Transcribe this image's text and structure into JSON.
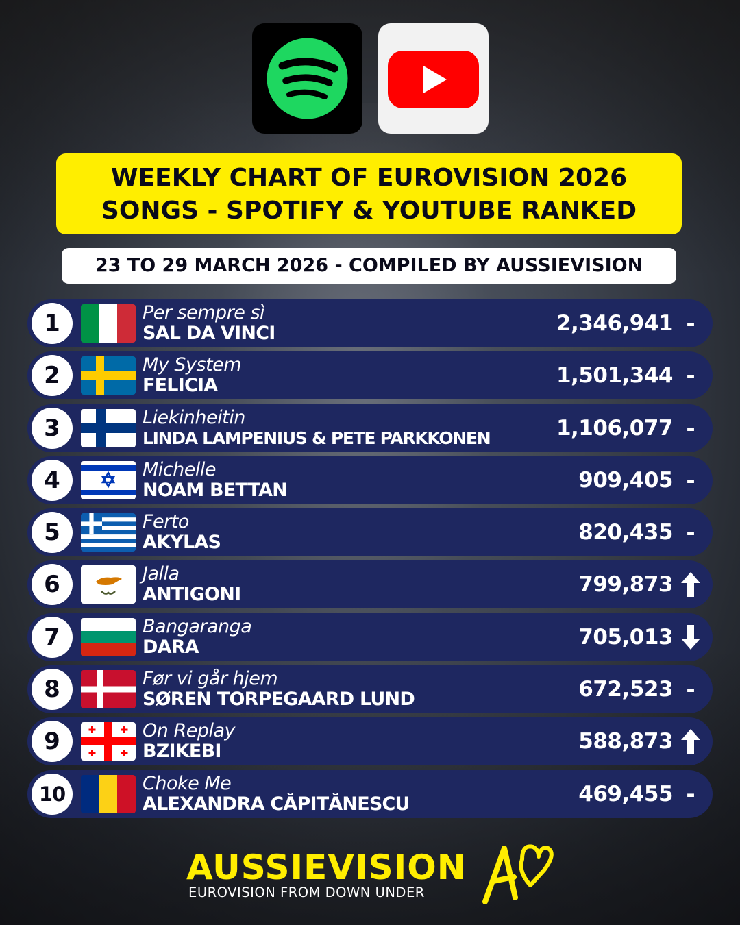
{
  "header": {
    "title_line1": "WEEKLY CHART OF EUROVISION 2026",
    "title_line2": "SONGS - SPOTIFY & YOUTUBE RANKED",
    "subtitle": "23 TO 29 MARCH 2026 - COMPILED BY AUSSIEVISION",
    "icons": [
      "spotify-icon",
      "youtube-icon"
    ],
    "colors": {
      "title_bg": "#ffee00",
      "row_bg": "#1e2760",
      "spotify_green": "#1ed760",
      "youtube_red": "#ff0000"
    }
  },
  "chart": {
    "rows": [
      {
        "rank": "1",
        "flag": "italy-flag",
        "song": "Per sempre sì",
        "artist": "SAL DA VINCI",
        "streams": "2,346,941",
        "movement": "-"
      },
      {
        "rank": "2",
        "flag": "sweden-flag",
        "song": "My System",
        "artist": "FELICIA",
        "streams": "1,501,344",
        "movement": "-"
      },
      {
        "rank": "3",
        "flag": "finland-flag",
        "song": "Liekinheitin",
        "artist": "LINDA LAMPENIUS & PETE PARKKONEN",
        "streams": "1,106,077",
        "movement": "-"
      },
      {
        "rank": "4",
        "flag": "israel-flag",
        "song": "Michelle",
        "artist": "NOAM BETTAN",
        "streams": "909,405",
        "movement": "-"
      },
      {
        "rank": "5",
        "flag": "greece-flag",
        "song": "Ferto",
        "artist": "AKYLAS",
        "streams": "820,435",
        "movement": "-"
      },
      {
        "rank": "6",
        "flag": "cyprus-flag",
        "song": "Jalla",
        "artist": "ANTIGONI",
        "streams": "799,873",
        "movement": "up"
      },
      {
        "rank": "7",
        "flag": "bulgaria-flag",
        "song": "Bangaranga",
        "artist": "DARA",
        "streams": "705,013",
        "movement": "down"
      },
      {
        "rank": "8",
        "flag": "denmark-flag",
        "song": "Før vi går hjem",
        "artist": "SØREN TORPEGAARD LUND",
        "streams": "672,523",
        "movement": "-"
      },
      {
        "rank": "9",
        "flag": "georgia-flag",
        "song": "On Replay",
        "artist": "BZIKEBI",
        "streams": "588,873",
        "movement": "up"
      },
      {
        "rank": "10",
        "flag": "romania-flag",
        "song": "Choke Me",
        "artist": "ALEXANDRA CĂPITĂNESCU",
        "streams": "469,455",
        "movement": "-"
      }
    ]
  },
  "footer": {
    "brand": "AUSSIEVISION",
    "tagline": "EUROVISION FROM DOWN UNDER",
    "logo": "aussievision-logo"
  }
}
